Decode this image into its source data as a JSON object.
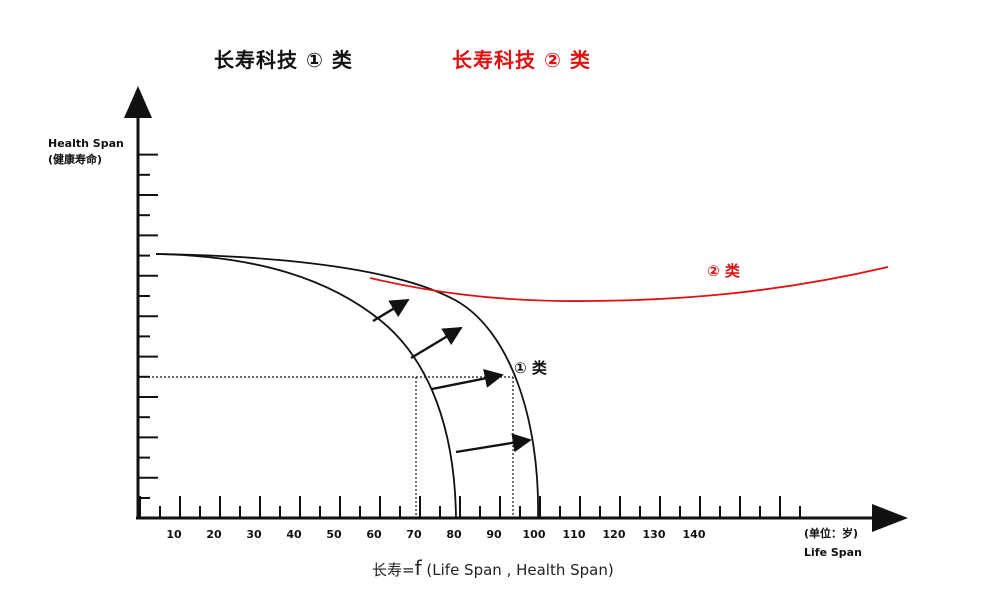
{
  "titles": {
    "category_1": "长寿科技 ① 类",
    "category_2": "长寿科技 ② 类"
  },
  "y_axis": {
    "label_en": "Health Span",
    "label_cn": "(健康寿命)"
  },
  "x_axis": {
    "unit": "(单位：岁)",
    "label_en": "Life Span",
    "tick_labels": [
      "10",
      "20",
      "30",
      "40",
      "50",
      "60",
      "70",
      "80",
      "90",
      "100",
      "110",
      "120",
      "130",
      "140"
    ]
  },
  "curve_labels": {
    "curve_1": "① 类",
    "curve_2": "② 类"
  },
  "formula": {
    "prefix": "长寿=",
    "f": "f",
    "args": "(Life Span , Health Span)"
  },
  "colors": {
    "black": "#111111",
    "red": "#e01010"
  }
}
